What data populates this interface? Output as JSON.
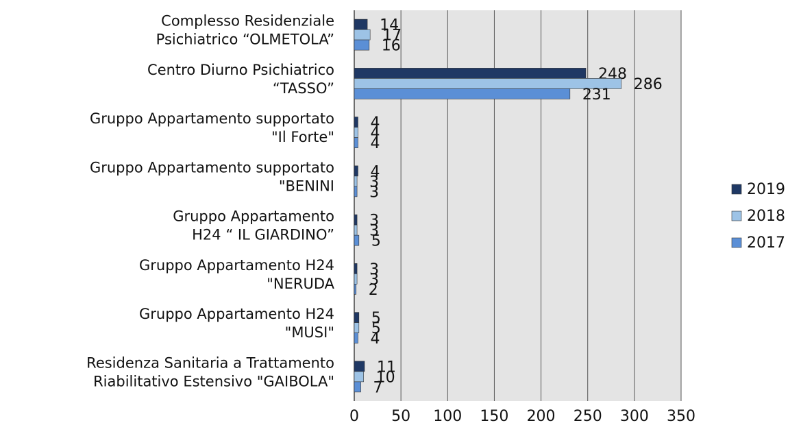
{
  "chart_data": {
    "type": "barh",
    "categories": [
      [
        "Complesso Residenziale",
        "Psichiatrico “OLMETOLA”"
      ],
      [
        "Centro Diurno Psichiatrico",
        "“TASSO”"
      ],
      [
        "Gruppo Appartamento supportato",
        "\"Il Forte\""
      ],
      [
        "Gruppo Appartamento supportato",
        "\"BENINI"
      ],
      [
        "Gruppo Appartamento",
        "H24 “ IL GIARDINO”"
      ],
      [
        "Gruppo Appartamento H24",
        "\"NERUDA"
      ],
      [
        "Gruppo Appartamento H24",
        "\"MUSI\""
      ],
      [
        "Residenza Sanitaria a Trattamento",
        "Riabilitativo Estensivo \"GAIBOLA\""
      ]
    ],
    "series": [
      {
        "name": "2019",
        "color": "#1f3864",
        "values": [
          14,
          248,
          4,
          4,
          3,
          3,
          5,
          11
        ]
      },
      {
        "name": "2018",
        "color": "#9dc3e6",
        "values": [
          17,
          286,
          4,
          3,
          3,
          3,
          5,
          10
        ]
      },
      {
        "name": "2017",
        "color": "#5b8fd6",
        "values": [
          16,
          231,
          4,
          3,
          5,
          2,
          4,
          7
        ]
      }
    ],
    "xlim": [
      0,
      350
    ],
    "xticks": [
      0,
      50,
      100,
      150,
      200,
      250,
      300,
      350
    ],
    "grid": true,
    "legend": "right"
  }
}
